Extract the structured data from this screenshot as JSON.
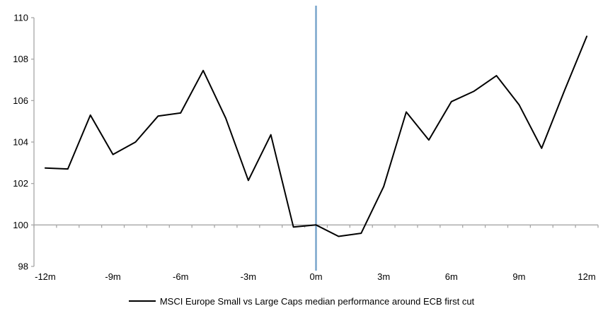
{
  "chart_data": {
    "type": "line",
    "title": "",
    "xlabel": "",
    "ylabel": "",
    "x": [
      -12,
      -11,
      -10,
      -9,
      -8,
      -7,
      -6,
      -5,
      -4,
      -3,
      -2,
      -1,
      0,
      1,
      2,
      3,
      4,
      5,
      6,
      7,
      8,
      9,
      10,
      11,
      12
    ],
    "series": [
      {
        "name": "MSCI Europe Small vs Large Caps median performance around ECB first cut",
        "color": "#000000",
        "values": [
          102.75,
          102.7,
          105.3,
          103.4,
          104.0,
          105.25,
          105.4,
          107.45,
          105.15,
          102.15,
          104.35,
          99.9,
          100.0,
          99.45,
          99.6,
          101.85,
          105.45,
          104.1,
          105.95,
          106.45,
          107.2,
          105.8,
          103.7,
          106.45,
          109.1
        ]
      }
    ],
    "ylim": [
      98,
      110
    ],
    "y_ticks": [
      98,
      100,
      102,
      104,
      106,
      108,
      110
    ],
    "x_tick_labels": [
      "-12m",
      "-9m",
      "-6m",
      "-3m",
      "0m",
      "3m",
      "6m",
      "9m",
      "12m"
    ],
    "x_tick_positions": [
      -12,
      -9,
      -6,
      -3,
      0,
      3,
      6,
      9,
      12
    ],
    "axis_cross_y": 100,
    "event_line_x": 0,
    "grid": "off",
    "legend_position": "bottom",
    "colors": {
      "axis": "#a6a6a6",
      "event_line": "#7aa6cc",
      "series": "#000000",
      "text": "#000000"
    }
  },
  "legend": {
    "label": "MSCI Europe Small vs Large Caps median performance around ECB first cut"
  }
}
